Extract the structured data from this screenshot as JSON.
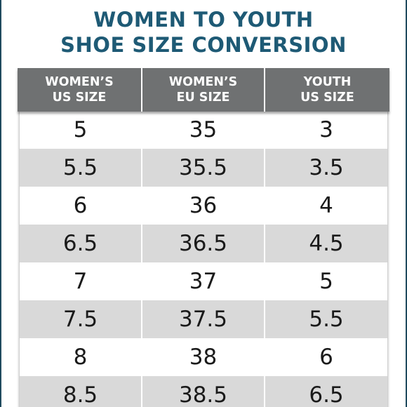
{
  "title": {
    "line1": "WOMEN TO YOUTH",
    "line2": "SHOE SIZE CONVERSION"
  },
  "table": {
    "headers": [
      {
        "line1": "WOMEN’S",
        "line2": "US SIZE"
      },
      {
        "line1": "WOMEN’S",
        "line2": "EU SIZE"
      },
      {
        "line1": "YOUTH",
        "line2": "US SIZE"
      }
    ],
    "rows": [
      [
        "5",
        "35",
        "3"
      ],
      [
        "5.5",
        "35.5",
        "3.5"
      ],
      [
        "6",
        "36",
        "4"
      ],
      [
        "6.5",
        "36.5",
        "4.5"
      ],
      [
        "7",
        "37",
        "5"
      ],
      [
        "7.5",
        "37.5",
        "5.5"
      ],
      [
        "8",
        "38",
        "6"
      ],
      [
        "8.5",
        "38.5",
        "6.5"
      ]
    ]
  },
  "colors": {
    "title": "#1e5a75",
    "header_bg": "#6f7172",
    "row_alt": "#d9d9d9",
    "frame": "#1f4a5e"
  }
}
